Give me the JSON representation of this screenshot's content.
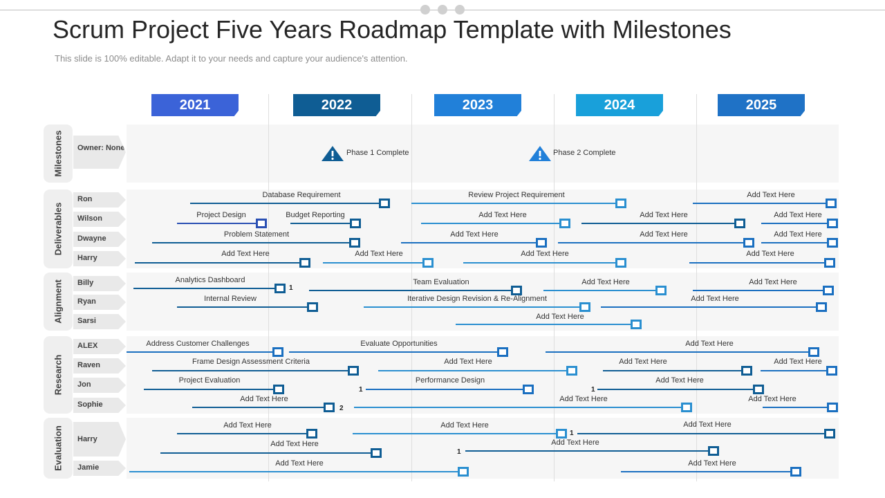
{
  "title": "Scrum Project Five Years Roadmap Template with Milestones",
  "subtitle": "This slide is 100% editable. Adapt it to your needs and capture your audience's attention.",
  "years": [
    "2021",
    "2022",
    "2023",
    "2024",
    "2025"
  ],
  "year_colors": [
    "#3b63d8",
    "#0f5d94",
    "#2180d9",
    "#19a0da",
    "#1f72c6"
  ],
  "categories": [
    "Milestones",
    "Deliverables",
    "Alignment",
    "Research",
    "Evaluation"
  ],
  "milestones": {
    "owner": "Owner: None",
    "phases": [
      "Phase 1 Complete",
      "Phase 2 Complete"
    ]
  },
  "names": [
    "Ron",
    "Wilson",
    "Dwayne",
    "Harry",
    "Billy",
    "Ryan",
    "Sarsi",
    "ALEX",
    "Raven",
    "Jon",
    "Sophie",
    "Harry",
    "Jamie"
  ],
  "labels": [
    "Database Requirement",
    "Review Project Requirement",
    "Add Text Here",
    "Project Design",
    "Budget Reporting",
    "Add Text Here",
    "Add Text Here",
    "Add Text Here",
    "Problem  Statement",
    "Add Text Here",
    "Add Text Here",
    "Add Text Here",
    "Add Text Here",
    "Add Text Here",
    "Add Text Here",
    "Add Text Here",
    "Analytics Dashboard",
    "Team Evaluation",
    "Add Text Here",
    "Add Text Here",
    "Internal Review",
    "Iterative Design Revision & Re-Alignment",
    "Add Text Here",
    "Add Text Here",
    "Address Customer Challenges",
    "Evaluate  Opportunities",
    "Add Text Here",
    "Frame Design Assessment Criteria",
    "Add Text Here",
    "Add Text Here",
    "Add Text Here",
    "Project Evaluation",
    "Performance Design",
    "Add Text Here",
    "Add Text Here",
    "Add Text Here",
    "Add Text Here",
    "Add Text Here",
    "Add Text Here",
    "Add Text Here",
    "Add Text Here",
    "Add Text Here",
    "Add Text Here",
    "Add Text Here"
  ],
  "numbers": [
    "1",
    "1",
    "1",
    "2",
    "1",
    "1"
  ]
}
